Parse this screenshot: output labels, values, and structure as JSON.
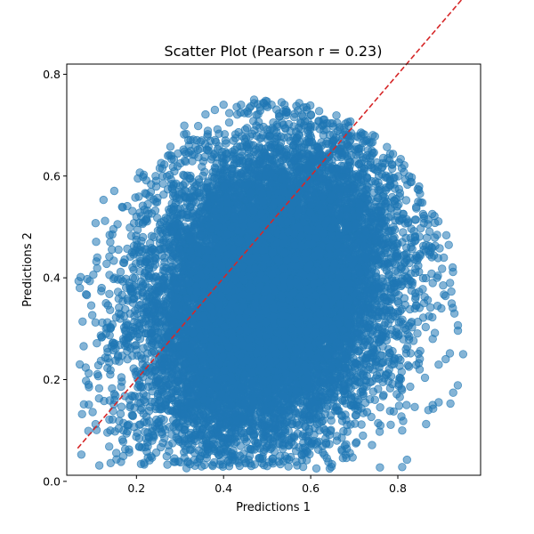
{
  "chart_data": {
    "type": "scatter",
    "title": "Scatter Plot (Pearson r = 0.23)",
    "xlabel": "Predictions 1",
    "ylabel": "Predictions 2",
    "xlim": [
      0.04,
      0.99
    ],
    "ylim": [
      0.012,
      0.82
    ],
    "xticks": [
      {
        "value": 0.2,
        "label": "0.2"
      },
      {
        "value": 0.4,
        "label": "0.4"
      },
      {
        "value": 0.6,
        "label": "0.6"
      },
      {
        "value": 0.8,
        "label": "0.8"
      }
    ],
    "yticks": [
      {
        "value": 0.0,
        "label": "0.0"
      },
      {
        "value": 0.2,
        "label": "0.2"
      },
      {
        "value": 0.4,
        "label": "0.4"
      },
      {
        "value": 0.6,
        "label": "0.6"
      },
      {
        "value": 0.8,
        "label": "0.8"
      }
    ],
    "grid": false,
    "legend": "none",
    "colors": {
      "points": "#1f77b4",
      "reference_line": "#d62728"
    },
    "reference_line": {
      "style": "dashed",
      "from": [
        0.065,
        0.065
      ],
      "to": [
        0.95,
        0.95
      ]
    },
    "series": [
      {
        "points": [
          [
            0.07,
            0.38
          ],
          [
            0.07,
            0.23
          ],
          [
            0.09,
            0.19
          ],
          [
            0.11,
            0.44
          ],
          [
            0.12,
            0.38
          ],
          [
            0.13,
            0.35
          ],
          [
            0.13,
            0.29
          ],
          [
            0.14,
            0.47
          ],
          [
            0.14,
            0.21
          ],
          [
            0.15,
            0.4
          ],
          [
            0.15,
            0.16
          ],
          [
            0.16,
            0.33
          ],
          [
            0.17,
            0.43
          ],
          [
            0.18,
            0.27
          ],
          [
            0.18,
            0.11
          ],
          [
            0.19,
            0.45
          ],
          [
            0.19,
            0.37
          ],
          [
            0.2,
            0.52
          ],
          [
            0.21,
            0.14
          ],
          [
            0.22,
            0.32
          ],
          [
            0.23,
            0.56
          ],
          [
            0.24,
            0.48
          ],
          [
            0.24,
            0.09
          ],
          [
            0.26,
            0.6
          ],
          [
            0.27,
            0.39
          ],
          [
            0.28,
            0.64
          ],
          [
            0.29,
            0.22
          ],
          [
            0.3,
            0.58
          ],
          [
            0.31,
            0.1
          ],
          [
            0.32,
            0.66
          ],
          [
            0.33,
            0.45
          ],
          [
            0.34,
            0.29
          ],
          [
            0.35,
            0.67
          ],
          [
            0.36,
            0.08
          ],
          [
            0.37,
            0.54
          ],
          [
            0.38,
            0.73
          ],
          [
            0.39,
            0.36
          ],
          [
            0.4,
            0.74
          ],
          [
            0.41,
            0.06
          ],
          [
            0.42,
            0.61
          ],
          [
            0.43,
            0.21
          ],
          [
            0.44,
            0.74
          ],
          [
            0.45,
            0.42
          ],
          [
            0.46,
            0.05
          ],
          [
            0.47,
            0.75
          ],
          [
            0.48,
            0.3
          ],
          [
            0.49,
            0.68
          ],
          [
            0.5,
            0.03
          ],
          [
            0.51,
            0.74
          ],
          [
            0.52,
            0.49
          ],
          [
            0.53,
            0.12
          ],
          [
            0.54,
            0.74
          ],
          [
            0.55,
            0.07
          ],
          [
            0.56,
            0.66
          ],
          [
            0.57,
            0.35
          ],
          [
            0.58,
            0.72
          ],
          [
            0.59,
            0.06
          ],
          [
            0.6,
            0.7
          ],
          [
            0.61,
            0.52
          ],
          [
            0.62,
            0.1
          ],
          [
            0.63,
            0.69
          ],
          [
            0.64,
            0.27
          ],
          [
            0.65,
            0.66
          ],
          [
            0.66,
            0.08
          ],
          [
            0.67,
            0.62
          ],
          [
            0.68,
            0.44
          ],
          [
            0.69,
            0.62
          ],
          [
            0.7,
            0.15
          ],
          [
            0.71,
            0.6
          ],
          [
            0.72,
            0.09
          ],
          [
            0.73,
            0.58
          ],
          [
            0.74,
            0.38
          ],
          [
            0.75,
            0.55
          ],
          [
            0.76,
            0.11
          ],
          [
            0.77,
            0.53
          ],
          [
            0.78,
            0.22
          ],
          [
            0.79,
            0.5
          ],
          [
            0.8,
            0.33
          ],
          [
            0.81,
            0.47
          ],
          [
            0.82,
            0.15
          ],
          [
            0.83,
            0.46
          ],
          [
            0.84,
            0.41
          ],
          [
            0.85,
            0.22
          ],
          [
            0.86,
            0.35
          ],
          [
            0.87,
            0.14
          ],
          [
            0.88,
            0.28
          ],
          [
            0.89,
            0.4
          ],
          [
            0.9,
            0.34
          ],
          [
            0.91,
            0.24
          ],
          [
            0.92,
            0.39
          ],
          [
            0.93,
            0.33
          ],
          [
            0.95,
            0.25
          ],
          [
            0.88,
            0.15
          ],
          [
            0.81,
            0.1
          ],
          [
            0.67,
            0.13
          ],
          [
            0.6,
            0.59
          ],
          [
            0.45,
            0.6
          ],
          [
            0.4,
            0.45
          ],
          [
            0.55,
            0.24
          ],
          [
            0.35,
            0.16
          ]
        ],
        "rendered_points": 14000,
        "distribution": {
          "mean": [
            0.5,
            0.37
          ],
          "sd": [
            0.145,
            0.15
          ],
          "correlation": 0.23
        },
        "bounds": {
          "x": [
            0.065,
            0.95
          ],
          "y": [
            0.025,
            0.75
          ]
        }
      }
    ]
  }
}
